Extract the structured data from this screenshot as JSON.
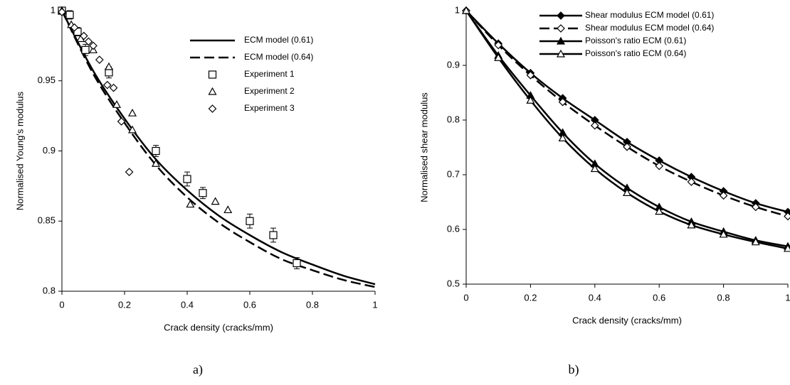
{
  "chart_data": [
    {
      "type": "line",
      "caption": "a)",
      "x_label": "Crack density (cracks/mm)",
      "y_label": "Normalised Young's modulus",
      "xlim": [
        0,
        1
      ],
      "xticks": [
        0,
        0.2,
        0.4,
        0.6,
        0.8,
        1
      ],
      "ylim": [
        0.8,
        1
      ],
      "yticks": [
        0.8,
        0.85,
        0.9,
        0.95,
        1
      ],
      "series": [
        {
          "name": "ECM model (0.61)",
          "color": "#000000",
          "line": "solid",
          "marker": "none",
          "filled": false,
          "x": [
            0,
            0.1,
            0.2,
            0.3,
            0.4,
            0.5,
            0.6,
            0.7,
            0.8,
            0.9,
            1
          ],
          "values": [
            1,
            0.957,
            0.923,
            0.894,
            0.872,
            0.854,
            0.84,
            0.828,
            0.819,
            0.811,
            0.805
          ]
        },
        {
          "name": "ECM model (0.64)",
          "color": "#000000",
          "line": "dashed",
          "marker": "none",
          "filled": false,
          "x": [
            0,
            0.1,
            0.2,
            0.3,
            0.4,
            0.5,
            0.6,
            0.7,
            0.8,
            0.9,
            1
          ],
          "values": [
            1,
            0.955,
            0.92,
            0.89,
            0.867,
            0.849,
            0.835,
            0.823,
            0.815,
            0.808,
            0.803
          ]
        },
        {
          "name": "Experiment 1",
          "color": "#000000",
          "line": "none",
          "marker": "square",
          "filled": false,
          "x": [
            0,
            0.025,
            0.05,
            0.075,
            0.15,
            0.3,
            0.4,
            0.45,
            0.6,
            0.675,
            0.75
          ],
          "values": [
            1,
            0.997,
            0.985,
            0.972,
            0.956,
            0.9,
            0.88,
            0.87,
            0.85,
            0.84,
            0.82
          ],
          "errors": [
            0.002,
            0.003,
            0.003,
            0.004,
            0.004,
            0.004,
            0.005,
            0.004,
            0.005,
            0.005,
            0.004
          ]
        },
        {
          "name": "Experiment 2",
          "color": "#000000",
          "line": "none",
          "marker": "triangle",
          "filled": false,
          "x": [
            0,
            0.03,
            0.06,
            0.1,
            0.15,
            0.175,
            0.225,
            0.225,
            0.3,
            0.41,
            0.49,
            0.53
          ],
          "values": [
            1,
            0.99,
            0.98,
            0.972,
            0.96,
            0.933,
            0.927,
            0.915,
            0.891,
            0.862,
            0.864,
            0.858
          ]
        },
        {
          "name": "Experiment 3",
          "color": "#000000",
          "line": "none",
          "marker": "diamond",
          "filled": false,
          "x": [
            0,
            0.04,
            0.07,
            0.085,
            0.1,
            0.12,
            0.145,
            0.165,
            0.19,
            0.215
          ],
          "values": [
            0.999,
            0.988,
            0.982,
            0.978,
            0.975,
            0.965,
            0.947,
            0.945,
            0.921,
            0.885
          ]
        }
      ]
    },
    {
      "type": "line",
      "caption": "b)",
      "x_label": "Crack density (cracks/mm)",
      "y_label": "Normalised shear modulus",
      "xlim": [
        0,
        1
      ],
      "xticks": [
        0,
        0.2,
        0.4,
        0.6,
        0.8,
        1
      ],
      "ylim": [
        0.5,
        1
      ],
      "yticks": [
        0.5,
        0.6,
        0.7,
        0.8,
        0.9,
        1
      ],
      "x": [
        0,
        0.1,
        0.2,
        0.3,
        0.4,
        0.5,
        0.6,
        0.7,
        0.8,
        0.9,
        1
      ],
      "series": [
        {
          "name": "Shear modulus ECM model (0.61)",
          "color": "#000000",
          "line": "solid",
          "marker": "diamond",
          "filled": true,
          "values": [
            1,
            0.94,
            0.886,
            0.84,
            0.8,
            0.76,
            0.726,
            0.696,
            0.67,
            0.648,
            0.632
          ]
        },
        {
          "name": " Shear modulus ECM model (0.64)",
          "color": "#000000",
          "line": "dashed",
          "marker": "diamond",
          "filled": false,
          "values": [
            1,
            0.937,
            0.882,
            0.833,
            0.79,
            0.751,
            0.716,
            0.687,
            0.662,
            0.641,
            0.624
          ]
        },
        {
          "name": "Poisson's ratio ECM (0.61)",
          "color": "#000000",
          "line": "solid",
          "marker": "triangle",
          "filled": true,
          "values": [
            1,
            0.918,
            0.845,
            0.777,
            0.72,
            0.676,
            0.641,
            0.614,
            0.596,
            0.58,
            0.569
          ]
        },
        {
          "name": "Poisson's ratio ECM (0.64)",
          "color": "#000000",
          "line": "solid",
          "marker": "triangle",
          "filled": false,
          "values": [
            1,
            0.914,
            0.836,
            0.767,
            0.711,
            0.667,
            0.633,
            0.608,
            0.591,
            0.577,
            0.565
          ]
        }
      ]
    }
  ]
}
